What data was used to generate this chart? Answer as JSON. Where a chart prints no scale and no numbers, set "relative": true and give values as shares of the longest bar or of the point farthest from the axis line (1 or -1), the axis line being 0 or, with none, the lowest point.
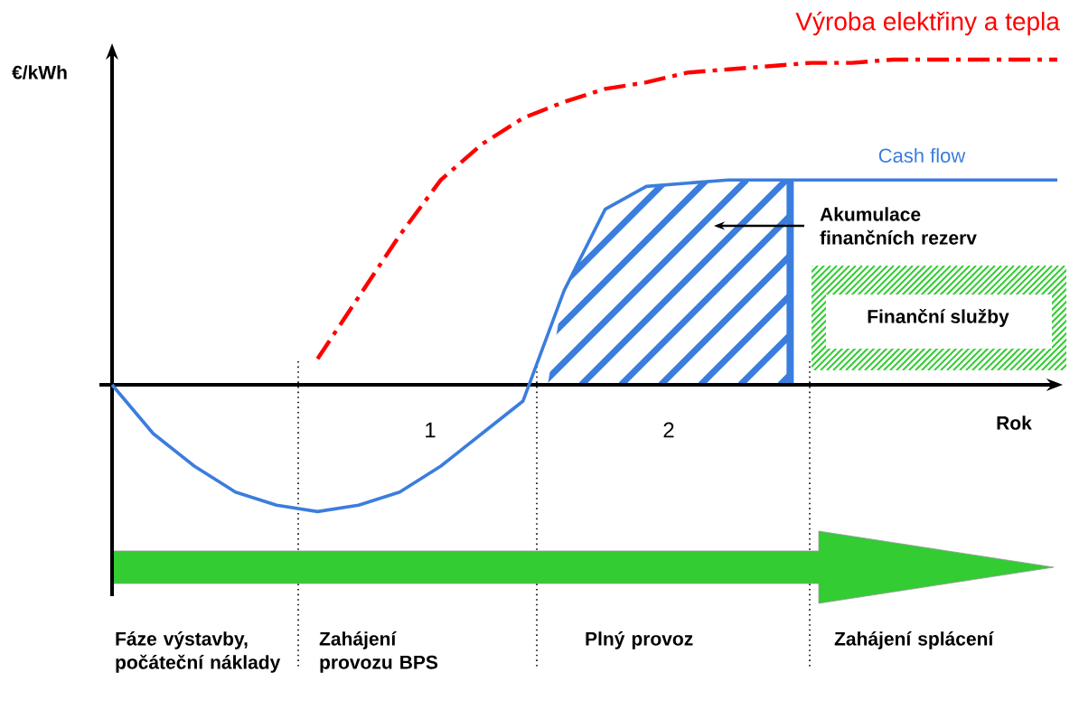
{
  "chart_data": {
    "type": "line",
    "relative": true,
    "xlabel": "Rok",
    "ylabel": "€/kWh",
    "legend": false,
    "categories": [
      null,
      null,
      null,
      null,
      null,
      null,
      null,
      null,
      null,
      null,
      null,
      null,
      null,
      null,
      null,
      null,
      null,
      null,
      null,
      null,
      null,
      null,
      null,
      null
    ],
    "series": [
      {
        "name": "Výroba elektřiny a tepla",
        "color": "#ff0000",
        "line_style": "dashdot",
        "values": [
          null,
          null,
          null,
          null,
          null,
          0.08,
          0.27,
          0.46,
          0.63,
          0.74,
          0.82,
          0.87,
          0.91,
          0.93,
          0.96,
          0.97,
          0.98,
          0.99,
          0.99,
          1,
          1,
          1,
          1,
          1
        ]
      },
      {
        "name": "Cash flow",
        "color": "#3b7ddd",
        "line_style": "solid",
        "values": [
          0,
          -0.15,
          -0.25,
          -0.33,
          -0.37,
          -0.39,
          -0.37,
          -0.33,
          -0.25,
          -0.15,
          -0.05,
          0.29,
          0.54,
          0.61,
          0.62,
          0.63,
          0.63,
          0.63,
          0.63,
          0.63,
          0.63,
          0.63,
          0.63,
          0.63
        ]
      }
    ],
    "annotations": [
      "1",
      "2",
      "Finanční služby",
      "Fáze výstavby, počáteční náklady",
      "Zahájení provozu BPS",
      "Plný provoz",
      "Zahájení splácení",
      "Akumulace finančních rezerv"
    ]
  }
}
